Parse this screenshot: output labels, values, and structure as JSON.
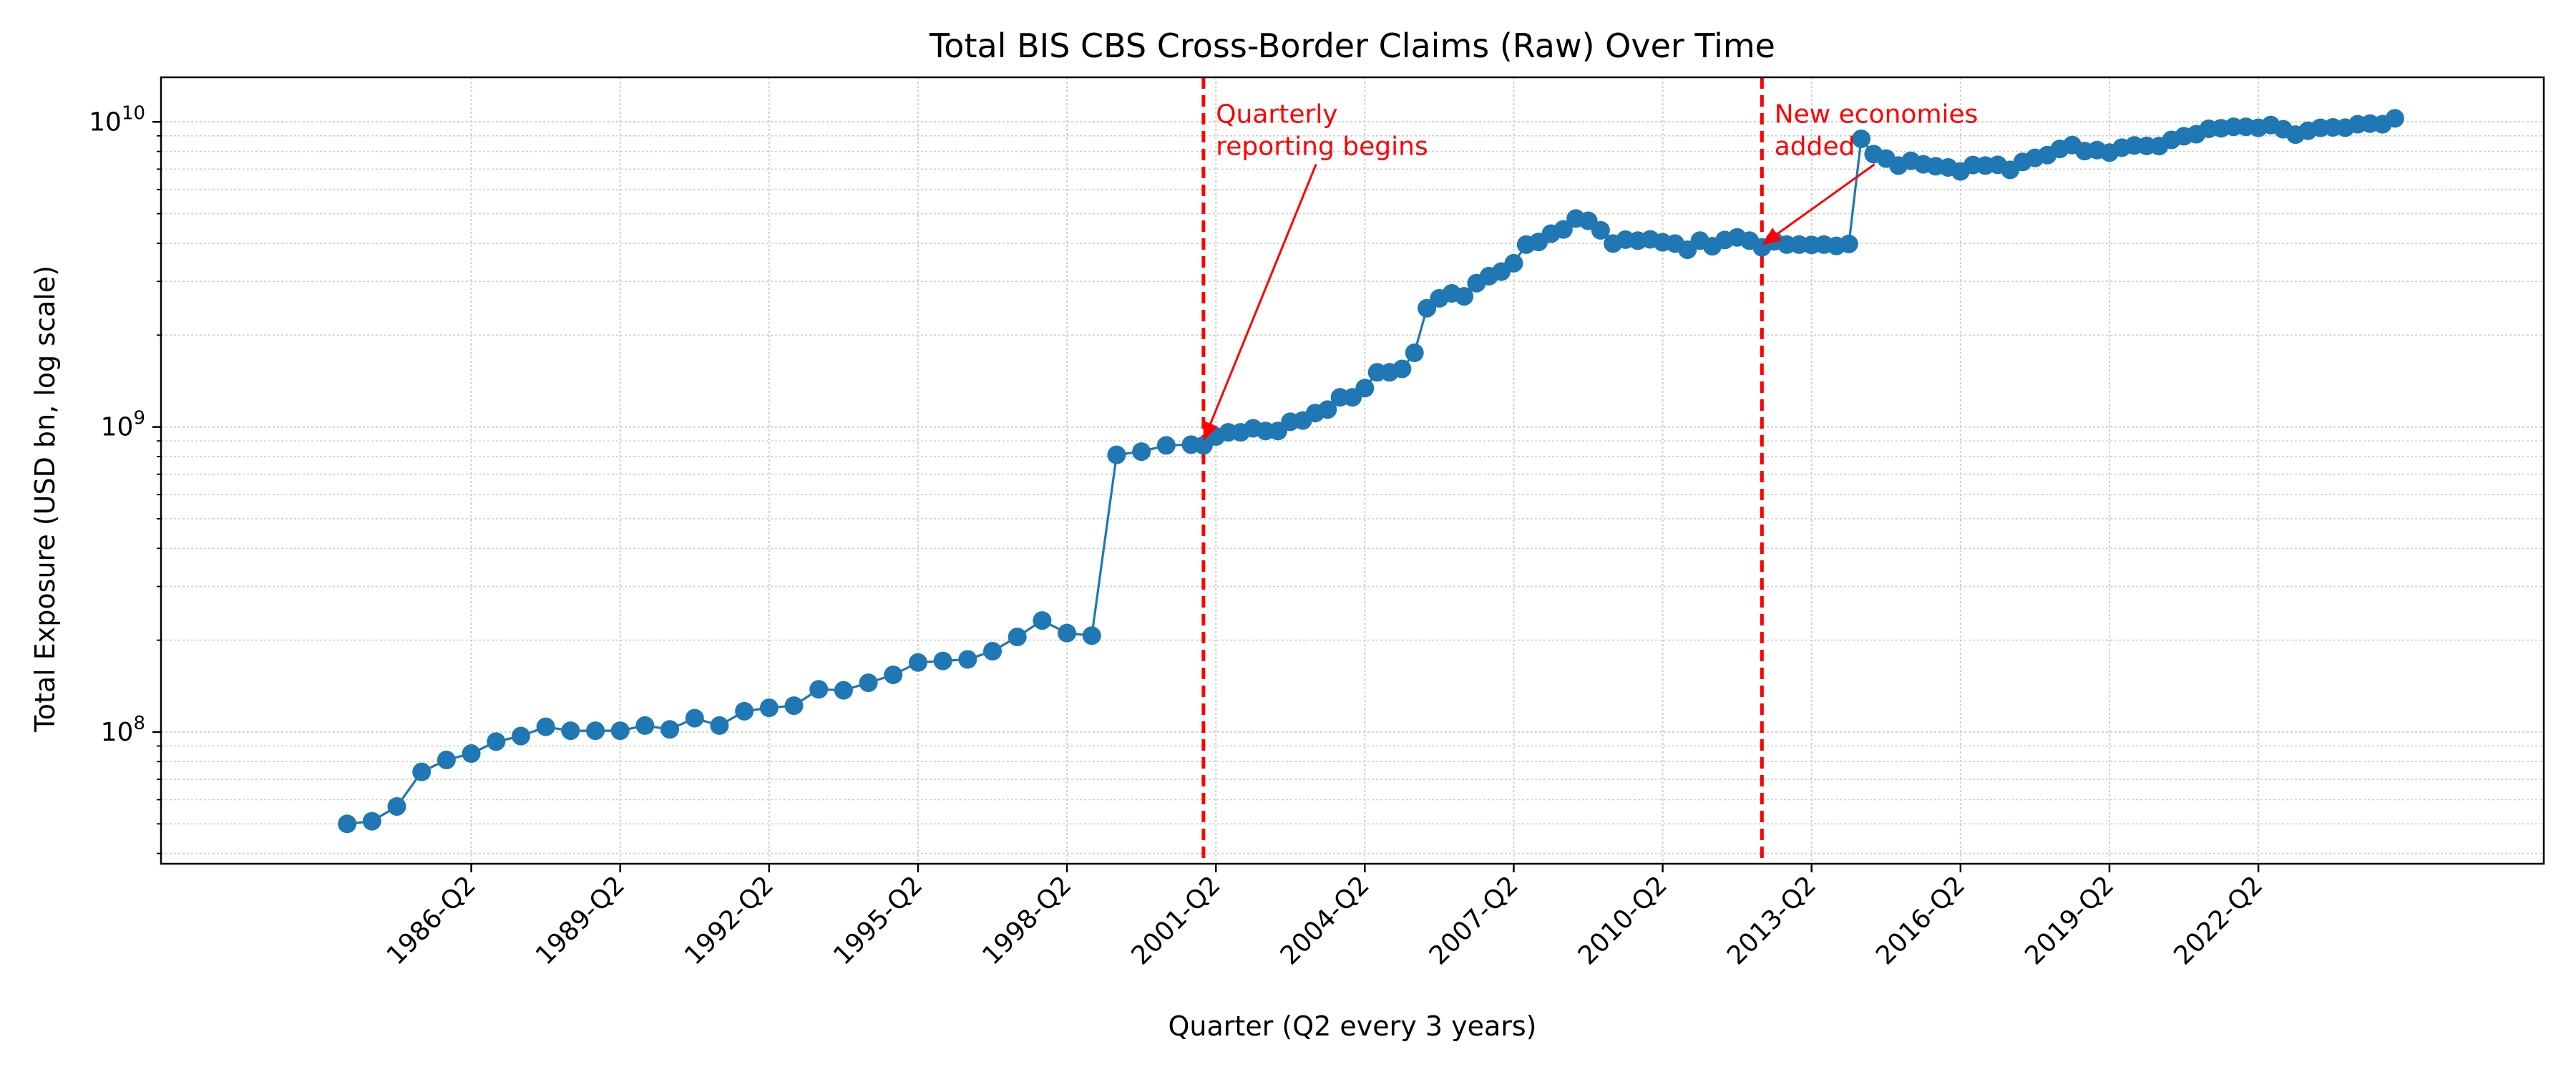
{
  "chart_data": {
    "type": "line",
    "title": "Total BIS CBS Cross-Border Claims (Raw) Over Time",
    "xlabel": "Quarter (Q2 every 3 years)",
    "ylabel": "Total Exposure (USD bn, log scale)",
    "y_scale": "log",
    "grid": true,
    "legend": "none",
    "ylim": [
      37000000,
      14000000000
    ],
    "x_tick_labels": [
      "1986-Q2",
      "1989-Q2",
      "1992-Q2",
      "1995-Q2",
      "1998-Q2",
      "2001-Q2",
      "2004-Q2",
      "2007-Q2",
      "2010-Q2",
      "2013-Q2",
      "2016-Q2",
      "2019-Q2",
      "2022-Q2"
    ],
    "y_tick_labels": [
      "10^8",
      "10^9",
      "10^10"
    ],
    "y_tick_values": [
      100000000,
      1000000000,
      10000000000
    ],
    "series": [
      {
        "color": "#1f77b4",
        "points": [
          [
            "1983-Q4",
            50000000
          ],
          [
            "1984-Q2",
            51000000
          ],
          [
            "1984-Q4",
            57000000
          ],
          [
            "1985-Q2",
            74000000
          ],
          [
            "1985-Q4",
            81000000
          ],
          [
            "1986-Q2",
            85000000
          ],
          [
            "1986-Q4",
            93000000
          ],
          [
            "1987-Q2",
            97000000
          ],
          [
            "1987-Q4",
            104000000
          ],
          [
            "1988-Q2",
            101000000
          ],
          [
            "1988-Q4",
            101000000
          ],
          [
            "1989-Q2",
            101000000
          ],
          [
            "1989-Q4",
            105000000
          ],
          [
            "1990-Q2",
            102000000
          ],
          [
            "1990-Q4",
            111000000
          ],
          [
            "1991-Q2",
            105000000
          ],
          [
            "1991-Q4",
            117000000
          ],
          [
            "1992-Q2",
            120000000
          ],
          [
            "1992-Q4",
            122000000
          ],
          [
            "1993-Q2",
            138000000
          ],
          [
            "1993-Q4",
            137000000
          ],
          [
            "1994-Q2",
            145000000
          ],
          [
            "1994-Q4",
            154000000
          ],
          [
            "1995-Q2",
            169000000
          ],
          [
            "1995-Q4",
            171000000
          ],
          [
            "1996-Q2",
            173000000
          ],
          [
            "1996-Q4",
            184000000
          ],
          [
            "1997-Q2",
            205000000
          ],
          [
            "1997-Q4",
            232000000
          ],
          [
            "1998-Q2",
            211000000
          ],
          [
            "1998-Q4",
            207000000
          ],
          [
            "1999-Q2",
            810000000
          ],
          [
            "1999-Q4",
            830000000
          ],
          [
            "2000-Q2",
            870000000
          ],
          [
            "2000-Q4",
            875000000
          ],
          [
            "2001-Q1",
            870000000
          ],
          [
            "2001-Q2",
            930000000
          ],
          [
            "2001-Q3",
            960000000
          ],
          [
            "2001-Q4",
            960000000
          ],
          [
            "2002-Q1",
            990000000
          ],
          [
            "2002-Q2",
            970000000
          ],
          [
            "2002-Q3",
            970000000
          ],
          [
            "2002-Q4",
            1040000000
          ],
          [
            "2003-Q1",
            1050000000
          ],
          [
            "2003-Q2",
            1110000000
          ],
          [
            "2003-Q3",
            1140000000
          ],
          [
            "2003-Q4",
            1250000000
          ],
          [
            "2004-Q1",
            1250000000
          ],
          [
            "2004-Q2",
            1340000000
          ],
          [
            "2004-Q3",
            1510000000
          ],
          [
            "2004-Q4",
            1510000000
          ],
          [
            "2005-Q1",
            1550000000
          ],
          [
            "2005-Q2",
            1750000000
          ],
          [
            "2005-Q3",
            2450000000
          ],
          [
            "2005-Q4",
            2640000000
          ],
          [
            "2006-Q1",
            2740000000
          ],
          [
            "2006-Q2",
            2680000000
          ],
          [
            "2006-Q3",
            2960000000
          ],
          [
            "2006-Q4",
            3120000000
          ],
          [
            "2007-Q1",
            3230000000
          ],
          [
            "2007-Q2",
            3440000000
          ],
          [
            "2007-Q3",
            3960000000
          ],
          [
            "2007-Q4",
            4040000000
          ],
          [
            "2008-Q1",
            4300000000
          ],
          [
            "2008-Q2",
            4440000000
          ],
          [
            "2008-Q3",
            4820000000
          ],
          [
            "2008-Q4",
            4740000000
          ],
          [
            "2009-Q1",
            4410000000
          ],
          [
            "2009-Q2",
            3990000000
          ],
          [
            "2009-Q3",
            4110000000
          ],
          [
            "2009-Q4",
            4080000000
          ],
          [
            "2010-Q1",
            4120000000
          ],
          [
            "2010-Q2",
            4030000000
          ],
          [
            "2010-Q3",
            3990000000
          ],
          [
            "2010-Q4",
            3810000000
          ],
          [
            "2011-Q1",
            4080000000
          ],
          [
            "2011-Q2",
            3910000000
          ],
          [
            "2011-Q3",
            4100000000
          ],
          [
            "2011-Q4",
            4180000000
          ],
          [
            "2012-Q1",
            4080000000
          ],
          [
            "2012-Q2",
            3880000000
          ],
          [
            "2012-Q3",
            4060000000
          ],
          [
            "2012-Q4",
            3960000000
          ],
          [
            "2013-Q1",
            3960000000
          ],
          [
            "2013-Q2",
            3950000000
          ],
          [
            "2013-Q3",
            3960000000
          ],
          [
            "2013-Q4",
            3920000000
          ],
          [
            "2014-Q1",
            3980000000
          ],
          [
            "2014-Q2",
            8800000000
          ],
          [
            "2014-Q3",
            7840000000
          ],
          [
            "2014-Q4",
            7580000000
          ],
          [
            "2015-Q1",
            7190000000
          ],
          [
            "2015-Q2",
            7450000000
          ],
          [
            "2015-Q3",
            7260000000
          ],
          [
            "2015-Q4",
            7150000000
          ],
          [
            "2016-Q1",
            7090000000
          ],
          [
            "2016-Q2",
            6880000000
          ],
          [
            "2016-Q3",
            7220000000
          ],
          [
            "2016-Q4",
            7190000000
          ],
          [
            "2017-Q1",
            7230000000
          ],
          [
            "2017-Q2",
            6960000000
          ],
          [
            "2017-Q3",
            7390000000
          ],
          [
            "2017-Q4",
            7620000000
          ],
          [
            "2018-Q1",
            7780000000
          ],
          [
            "2018-Q2",
            8150000000
          ],
          [
            "2018-Q3",
            8390000000
          ],
          [
            "2018-Q4",
            8020000000
          ],
          [
            "2019-Q1",
            8080000000
          ],
          [
            "2019-Q2",
            7930000000
          ],
          [
            "2019-Q3",
            8230000000
          ],
          [
            "2019-Q4",
            8370000000
          ],
          [
            "2020-Q1",
            8340000000
          ],
          [
            "2020-Q2",
            8330000000
          ],
          [
            "2020-Q3",
            8730000000
          ],
          [
            "2020-Q4",
            8970000000
          ],
          [
            "2021-Q1",
            9110000000
          ],
          [
            "2021-Q2",
            9490000000
          ],
          [
            "2021-Q3",
            9530000000
          ],
          [
            "2021-Q4",
            9630000000
          ],
          [
            "2022-Q1",
            9630000000
          ],
          [
            "2022-Q2",
            9560000000
          ],
          [
            "2022-Q3",
            9760000000
          ],
          [
            "2022-Q4",
            9460000000
          ],
          [
            "2023-Q1",
            9080000000
          ],
          [
            "2023-Q2",
            9350000000
          ],
          [
            "2023-Q3",
            9560000000
          ],
          [
            "2023-Q4",
            9590000000
          ],
          [
            "2024-Q1",
            9570000000
          ],
          [
            "2024-Q2",
            9820000000
          ],
          [
            "2024-Q3",
            9870000000
          ],
          [
            "2024-Q4",
            9820000000
          ],
          [
            "2025-Q1",
            10270000000
          ]
        ]
      }
    ],
    "annotations": [
      {
        "text_lines": [
          "Quarterly",
          "reporting begins"
        ],
        "color": "#ff0000",
        "vline_x": "2001-Q1",
        "arrow_to": [
          "2001-Q1",
          900000000
        ],
        "text_anchor": [
          "2001-Q2",
          8000000000
        ]
      },
      {
        "text_lines": [
          "New economies",
          "added"
        ],
        "color": "#ff0000",
        "vline_x": "2012-Q2",
        "arrow_to": [
          "2012-Q2",
          3950000000
        ],
        "text_anchor": [
          "2012-Q3",
          8000000000
        ]
      }
    ]
  }
}
